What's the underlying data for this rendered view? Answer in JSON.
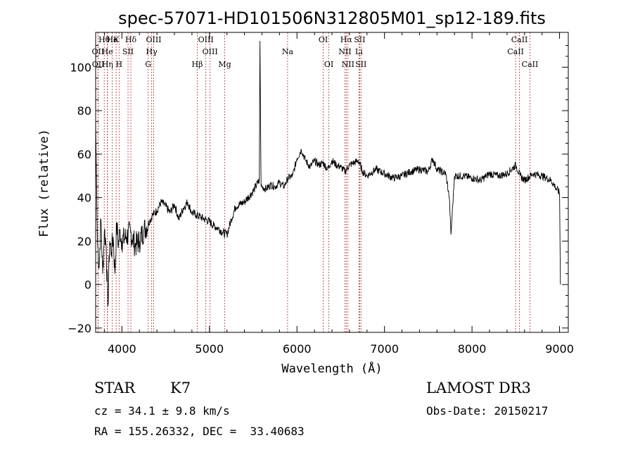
{
  "chart_data": {
    "type": "line",
    "title": "spec-57071-HD101506N312805M01_sp12-189.fits",
    "xlabel": "Wavelength (Å)",
    "ylabel": "Flux (relative)",
    "xlim": [
      3700,
      9100
    ],
    "ylim": [
      -22,
      116
    ],
    "x_ticks": [
      4000,
      5000,
      6000,
      7000,
      8000,
      9000
    ],
    "x_tick_labels": [
      "4000",
      "5000",
      "6000",
      "7000",
      "8000",
      "9000"
    ],
    "y_ticks": [
      -20,
      0,
      20,
      40,
      60,
      80,
      100
    ],
    "y_tick_labels": [
      "−20",
      "0",
      "20",
      "40",
      "60",
      "80",
      "100"
    ],
    "series": [
      {
        "name": "flux",
        "x": [
          3700,
          3720,
          3740,
          3760,
          3780,
          3800,
          3820,
          3840,
          3860,
          3880,
          3900,
          3920,
          3940,
          3960,
          3980,
          4000,
          4050,
          4100,
          4150,
          4200,
          4250,
          4300,
          4350,
          4400,
          4450,
          4500,
          4550,
          4600,
          4650,
          4700,
          4750,
          4800,
          4850,
          4900,
          4950,
          5000,
          5050,
          5100,
          5150,
          5200,
          5250,
          5300,
          5400,
          5500,
          5570,
          5577,
          5590,
          5650,
          5700,
          5750,
          5800,
          5850,
          5900,
          5950,
          6000,
          6050,
          6100,
          6150,
          6200,
          6250,
          6300,
          6350,
          6400,
          6450,
          6500,
          6550,
          6600,
          6650,
          6700,
          6750,
          6800,
          6900,
          7000,
          7100,
          7200,
          7300,
          7400,
          7500,
          7550,
          7600,
          7700,
          7740,
          7760,
          7800,
          7900,
          8000,
          8100,
          8200,
          8300,
          8400,
          8500,
          8550,
          8600,
          8700,
          8800,
          8900,
          8950,
          9000,
          9010
        ],
        "y": [
          75,
          20,
          8,
          30,
          5,
          25,
          18,
          -10,
          20,
          15,
          22,
          5,
          28,
          18,
          25,
          20,
          22,
          24,
          18,
          20,
          25,
          28,
          32,
          34,
          38,
          36,
          33,
          37,
          30,
          35,
          38,
          33,
          32,
          31,
          30,
          29,
          27,
          26,
          24,
          23,
          30,
          36,
          38,
          43,
          48,
          112,
          45,
          44,
          46,
          45,
          47,
          45,
          49,
          50,
          58,
          62,
          57,
          54,
          57,
          55,
          56,
          53,
          57,
          55,
          54,
          52,
          55,
          56,
          57,
          52,
          50,
          53,
          51,
          49,
          50,
          52,
          53,
          52,
          58,
          53,
          51,
          40,
          23,
          50,
          50,
          49,
          48,
          51,
          50,
          51,
          55,
          50,
          48,
          51,
          50,
          48,
          45,
          42,
          0
        ]
      }
    ],
    "line_markers": [
      {
        "label": "Hθ",
        "x": 3798,
        "row": 1
      },
      {
        "label": "OII",
        "x": 3727,
        "row": 2
      },
      {
        "label": "OII",
        "x": 3729,
        "row": 3
      },
      {
        "label": "He",
        "x": 3889,
        "row": 1
      },
      {
        "label": "K",
        "x": 3934,
        "row": 1
      },
      {
        "label": "He",
        "x": 3833,
        "row": 2
      },
      {
        "label": "Hη",
        "x": 3835,
        "row": 3
      },
      {
        "label": "H",
        "x": 3968,
        "row": 3
      },
      {
        "label": "SII",
        "x": 4070,
        "row": 2
      },
      {
        "label": "Hδ",
        "x": 4102,
        "row": 1
      },
      {
        "label": "OIII",
        "x": 4363,
        "row": 1
      },
      {
        "label": "Hγ",
        "x": 4340,
        "row": 2
      },
      {
        "label": "G",
        "x": 4300,
        "row": 3
      },
      {
        "label": "Hβ",
        "x": 4861,
        "row": 3
      },
      {
        "label": "OIII",
        "x": 4959,
        "row": 1
      },
      {
        "label": "OIII",
        "x": 5007,
        "row": 2
      },
      {
        "label": "Mg",
        "x": 5175,
        "row": 3
      },
      {
        "label": "Na",
        "x": 5893,
        "row": 2
      },
      {
        "label": "OI",
        "x": 6300,
        "row": 1
      },
      {
        "label": "OI",
        "x": 6364,
        "row": 3
      },
      {
        "label": "Hα",
        "x": 6563,
        "row": 1
      },
      {
        "label": "SII",
        "x": 6716,
        "row": 1
      },
      {
        "label": "NII",
        "x": 6548,
        "row": 2
      },
      {
        "label": "Li",
        "x": 6708,
        "row": 2
      },
      {
        "label": "NII",
        "x": 6583,
        "row": 3
      },
      {
        "label": "SII",
        "x": 6731,
        "row": 3
      },
      {
        "label": "CaII",
        "x": 8542,
        "row": 1
      },
      {
        "label": "CaII",
        "x": 8498,
        "row": 2
      },
      {
        "label": "CaII",
        "x": 8662,
        "row": 3
      }
    ]
  },
  "info": {
    "class": "STAR",
    "subclass": "K7",
    "survey": "LAMOST DR3",
    "cz": "cz = 34.1 ± 9.8 km/s",
    "obs_date": "Obs-Date: 20150217",
    "coords": "RA = 155.26332, DEC =  33.40683"
  },
  "colors": {
    "line": "#000000",
    "marker": "#b03030",
    "axis": "#000000"
  }
}
